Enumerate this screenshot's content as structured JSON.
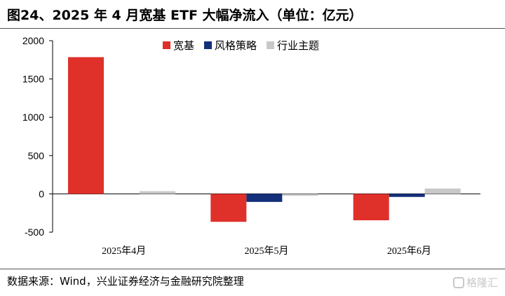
{
  "title": "图24、2025 年 4 月宽基 ETF 大幅净流入（单位：亿元）",
  "source": "数据来源：Wind，兴业证券经济与金融研究院整理",
  "watermark": "格隆汇",
  "colors": {
    "series_1": "#e0302a",
    "series_2": "#152f7a",
    "series_3": "#c8c8c8"
  },
  "chart_data": {
    "type": "bar",
    "title": "图24、2025 年 4 月宽基 ETF 大幅净流入（单位：亿元）",
    "xlabel": "",
    "ylabel": "",
    "categories": [
      "2025年4月",
      "2025年5月",
      "2025年6月"
    ],
    "series": [
      {
        "name": "宽基",
        "values": [
          1785,
          -365,
          -345
        ]
      },
      {
        "name": "风格策略",
        "values": [
          0,
          -105,
          -40
        ]
      },
      {
        "name": "行业主题",
        "values": [
          35,
          -25,
          70
        ]
      }
    ],
    "ylim": [
      -500,
      2000
    ],
    "yticks": [
      "2000",
      "1500",
      "1000",
      "500",
      "0",
      "-500"
    ],
    "ytick_values": [
      2000,
      1500,
      1000,
      500,
      0,
      -500
    ],
    "grid": false,
    "legend": "top-center"
  }
}
